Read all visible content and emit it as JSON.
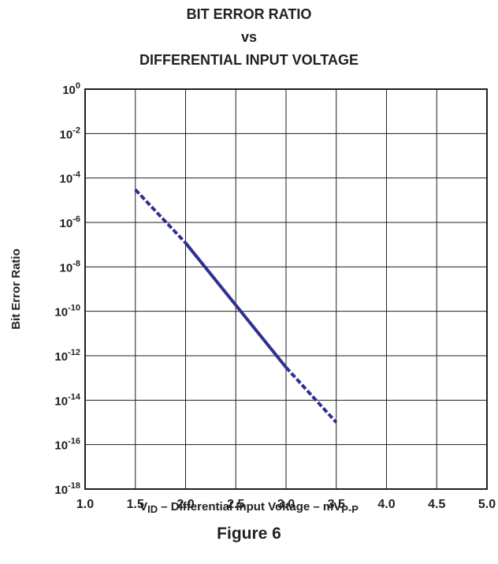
{
  "chart_data": {
    "type": "line",
    "title_lines": [
      "BIT ERROR RATIO",
      "vs",
      "DIFFERENTIAL INPUT VOLTAGE"
    ],
    "xlabel": {
      "v": "V",
      "v_sub": "ID",
      "text": " – Differential Input Voltage – mV",
      "unit_sub": "P-P"
    },
    "ylabel": "Bit Error Ratio",
    "xlim": [
      1.0,
      5.0
    ],
    "ylim": [
      1e-18,
      1
    ],
    "yscale": "log",
    "grid": true,
    "x_ticks": [
      "1.0",
      "1.5",
      "2.0",
      "2.5",
      "3.0",
      "3.5",
      "4.0",
      "4.5",
      "5.0"
    ],
    "y_ticks": [
      {
        "base": "10",
        "exp": "0"
      },
      {
        "base": "10",
        "exp": "-2"
      },
      {
        "base": "10",
        "exp": "-4"
      },
      {
        "base": "10",
        "exp": "-6"
      },
      {
        "base": "10",
        "exp": "-8"
      },
      {
        "base": "10",
        "exp": "-10"
      },
      {
        "base": "10",
        "exp": "-12"
      },
      {
        "base": "10",
        "exp": "-14"
      },
      {
        "base": "10",
        "exp": "-16"
      },
      {
        "base": "10",
        "exp": "-18"
      }
    ],
    "line_color": "#2e3192",
    "series": [
      {
        "style": "dashed",
        "x": [
          1.5,
          2.0
        ],
        "y": [
          3e-05,
          1.2e-07
        ]
      },
      {
        "style": "solid",
        "x": [
          2.0,
          3.0
        ],
        "y": [
          1.2e-07,
          3e-13
        ]
      },
      {
        "style": "dashed",
        "x": [
          3.0,
          3.5
        ],
        "y": [
          3e-13,
          1e-15
        ]
      }
    ]
  },
  "caption": "Figure 6"
}
